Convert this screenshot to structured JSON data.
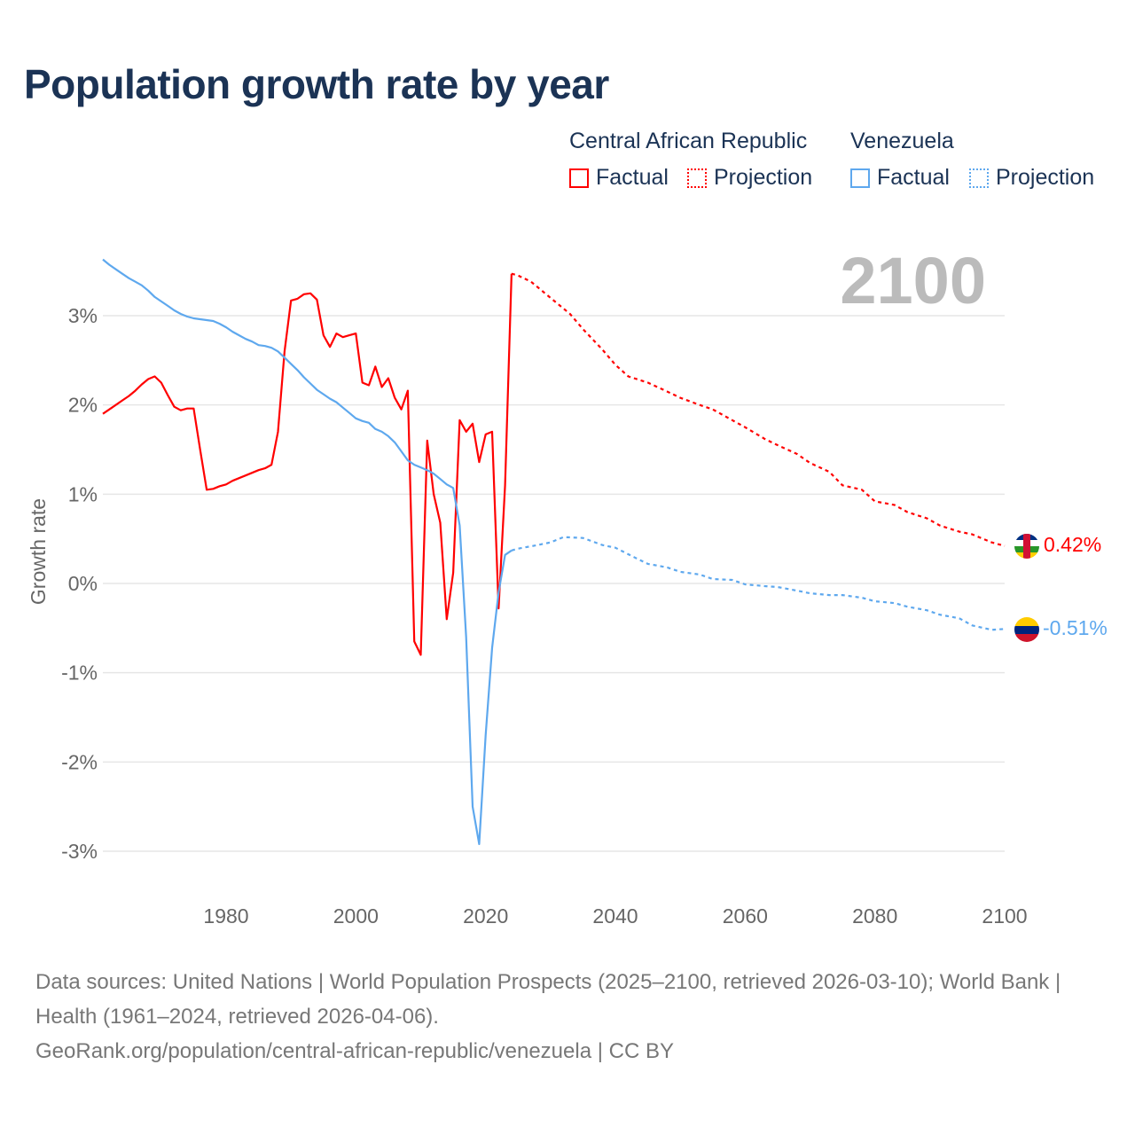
{
  "title": "Population growth rate by year",
  "legend": {
    "groups": [
      {
        "name": "Central African Republic",
        "factual": "Factual",
        "projection": "Projection",
        "color": "#ff0000"
      },
      {
        "name": "Venezuela",
        "factual": "Factual",
        "projection": "Projection",
        "color": "#5ea8ee"
      }
    ]
  },
  "year_marker": "2100",
  "end_labels": {
    "car": "0.42%",
    "venezuela": "-0.51%"
  },
  "flags": {
    "car": "central-african-republic-flag-icon",
    "venezuela": "venezuela-flag-icon"
  },
  "footer": {
    "line1": "Data sources: United Nations | World Population Prospects (2025–2100, retrieved 2026-03-10); World Bank | Health (1961–2024, retrieved 2026-04-06).",
    "line2": "GeoRank.org/population/central-african-republic/venezuela | CC BY"
  },
  "chart_data": {
    "type": "line",
    "title": "Population growth rate by year",
    "xlabel": "",
    "ylabel": "Growth rate",
    "xlim": [
      1961,
      2100
    ],
    "ylim": [
      -3.3,
      3.7
    ],
    "x_ticks": [
      1980,
      2000,
      2020,
      2040,
      2060,
      2080,
      2100
    ],
    "y_ticks": [
      -3,
      -2,
      -1,
      0,
      1,
      2,
      3
    ],
    "y_tick_labels": [
      "-3%",
      "-2%",
      "-1%",
      "0%",
      "1%",
      "2%",
      "3%"
    ],
    "grid": true,
    "legend_position": "top-right",
    "series": [
      {
        "name": "Central African Republic Factual",
        "color": "#ff0000",
        "style": "solid",
        "x": [
          1961,
          1962,
          1963,
          1964,
          1965,
          1966,
          1967,
          1968,
          1969,
          1970,
          1971,
          1972,
          1973,
          1974,
          1975,
          1976,
          1977,
          1978,
          1979,
          1980,
          1981,
          1982,
          1983,
          1984,
          1985,
          1986,
          1987,
          1988,
          1989,
          1990,
          1991,
          1992,
          1993,
          1994,
          1995,
          1996,
          1997,
          1998,
          1999,
          2000,
          2001,
          2002,
          2003,
          2004,
          2005,
          2006,
          2007,
          2008,
          2009,
          2010,
          2011,
          2012,
          2013,
          2014,
          2015,
          2016,
          2017,
          2018,
          2019,
          2020,
          2021,
          2022,
          2023,
          2024
        ],
        "values": [
          1.9,
          1.95,
          2.0,
          2.05,
          2.1,
          2.16,
          2.23,
          2.29,
          2.32,
          2.25,
          2.11,
          1.98,
          1.94,
          1.96,
          1.96,
          1.5,
          1.05,
          1.06,
          1.09,
          1.11,
          1.15,
          1.18,
          1.21,
          1.24,
          1.27,
          1.29,
          1.33,
          1.7,
          2.6,
          3.17,
          3.19,
          3.24,
          3.25,
          3.18,
          2.78,
          2.65,
          2.8,
          2.76,
          2.78,
          2.8,
          2.25,
          2.22,
          2.43,
          2.2,
          2.3,
          2.08,
          1.95,
          2.16,
          -0.65,
          -0.8,
          1.6,
          1.0,
          0.68,
          -0.4,
          0.12,
          1.83,
          1.7,
          1.79,
          1.36,
          1.67,
          1.7,
          -0.28,
          1.1,
          3.47
        ]
      },
      {
        "name": "Central African Republic Projection",
        "color": "#ff0000",
        "style": "dotted",
        "x": [
          2024,
          2025,
          2027,
          2030,
          2033,
          2035,
          2038,
          2040,
          2042,
          2045,
          2048,
          2050,
          2053,
          2055,
          2058,
          2060,
          2063,
          2065,
          2068,
          2070,
          2073,
          2075,
          2078,
          2080,
          2083,
          2085,
          2088,
          2090,
          2093,
          2095,
          2098,
          2100
        ],
        "values": [
          3.47,
          3.45,
          3.38,
          3.2,
          3.02,
          2.85,
          2.62,
          2.45,
          2.32,
          2.25,
          2.15,
          2.08,
          2.0,
          1.95,
          1.83,
          1.75,
          1.62,
          1.55,
          1.45,
          1.35,
          1.25,
          1.1,
          1.05,
          0.92,
          0.88,
          0.8,
          0.73,
          0.65,
          0.58,
          0.55,
          0.46,
          0.42
        ]
      },
      {
        "name": "Venezuela Factual",
        "color": "#5ea8ee",
        "style": "solid",
        "x": [
          1961,
          1962,
          1963,
          1964,
          1965,
          1966,
          1967,
          1968,
          1969,
          1970,
          1971,
          1972,
          1973,
          1974,
          1975,
          1976,
          1977,
          1978,
          1979,
          1980,
          1981,
          1982,
          1983,
          1984,
          1985,
          1986,
          1987,
          1988,
          1989,
          1990,
          1991,
          1992,
          1993,
          1994,
          1995,
          1996,
          1997,
          1998,
          1999,
          2000,
          2001,
          2002,
          2003,
          2004,
          2005,
          2006,
          2007,
          2008,
          2009,
          2010,
          2011,
          2012,
          2013,
          2014,
          2015,
          2016,
          2017,
          2018,
          2019,
          2020,
          2021,
          2022,
          2023,
          2024
        ],
        "values": [
          3.63,
          3.57,
          3.52,
          3.47,
          3.42,
          3.38,
          3.34,
          3.28,
          3.21,
          3.16,
          3.11,
          3.06,
          3.02,
          2.99,
          2.97,
          2.96,
          2.95,
          2.94,
          2.91,
          2.87,
          2.82,
          2.78,
          2.74,
          2.71,
          2.67,
          2.66,
          2.64,
          2.6,
          2.53,
          2.46,
          2.39,
          2.31,
          2.24,
          2.17,
          2.12,
          2.07,
          2.03,
          1.97,
          1.91,
          1.85,
          1.82,
          1.8,
          1.73,
          1.7,
          1.65,
          1.58,
          1.48,
          1.38,
          1.33,
          1.3,
          1.27,
          1.23,
          1.17,
          1.11,
          1.07,
          0.65,
          -0.6,
          -2.5,
          -2.92,
          -1.7,
          -0.72,
          -0.1,
          0.32,
          0.37
        ]
      },
      {
        "name": "Venezuela Projection",
        "color": "#5ea8ee",
        "style": "dotted",
        "x": [
          2024,
          2025,
          2028,
          2030,
          2032,
          2035,
          2038,
          2040,
          2043,
          2045,
          2048,
          2050,
          2053,
          2055,
          2058,
          2060,
          2063,
          2065,
          2068,
          2070,
          2073,
          2075,
          2078,
          2080,
          2083,
          2085,
          2088,
          2090,
          2093,
          2095,
          2098,
          2100
        ],
        "values": [
          0.37,
          0.39,
          0.43,
          0.46,
          0.52,
          0.51,
          0.43,
          0.4,
          0.29,
          0.22,
          0.18,
          0.13,
          0.1,
          0.05,
          0.04,
          -0.01,
          -0.03,
          -0.04,
          -0.08,
          -0.11,
          -0.13,
          -0.13,
          -0.16,
          -0.2,
          -0.22,
          -0.26,
          -0.3,
          -0.35,
          -0.39,
          -0.47,
          -0.52,
          -0.51
        ]
      }
    ]
  }
}
